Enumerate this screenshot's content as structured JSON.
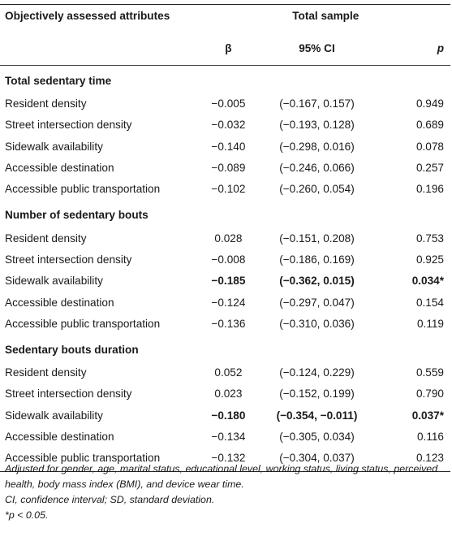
{
  "header": {
    "col1": "Objectively assessed attributes",
    "group": "Total sample",
    "beta": "β",
    "ci": "95% CI",
    "p": "p"
  },
  "sections": [
    {
      "title": "Total sedentary time",
      "rows": [
        {
          "attr": "Resident density",
          "beta": "−0.005",
          "ci": "(−0.167, 0.157)",
          "p": "0.949",
          "bold": false
        },
        {
          "attr": "Street intersection density",
          "beta": "−0.032",
          "ci": "(−0.193, 0.128)",
          "p": "0.689",
          "bold": false
        },
        {
          "attr": "Sidewalk availability",
          "beta": "−0.140",
          "ci": "(−0.298, 0.016)",
          "p": "0.078",
          "bold": false
        },
        {
          "attr": "Accessible destination",
          "beta": "−0.089",
          "ci": "(−0.246, 0.066)",
          "p": "0.257",
          "bold": false
        },
        {
          "attr": "Accessible public transportation",
          "beta": "−0.102",
          "ci": "(−0.260, 0.054)",
          "p": "0.196",
          "bold": false
        }
      ]
    },
    {
      "title": "Number of sedentary bouts",
      "rows": [
        {
          "attr": "Resident density",
          "beta": "0.028",
          "ci": "(−0.151, 0.208)",
          "p": "0.753",
          "bold": false
        },
        {
          "attr": "Street intersection density",
          "beta": "−0.008",
          "ci": "(−0.186, 0.169)",
          "p": "0.925",
          "bold": false
        },
        {
          "attr": "Sidewalk availability",
          "beta": "−0.185",
          "ci": "(−0.362, 0.015)",
          "p": "0.034*",
          "bold": true
        },
        {
          "attr": "Accessible destination",
          "beta": "−0.124",
          "ci": "(−0.297, 0.047)",
          "p": "0.154",
          "bold": false
        },
        {
          "attr": "Accessible public transportation",
          "beta": "−0.136",
          "ci": "(−0.310, 0.036)",
          "p": "0.119",
          "bold": false
        }
      ]
    },
    {
      "title": "Sedentary bouts duration",
      "rows": [
        {
          "attr": "Resident density",
          "beta": "0.052",
          "ci": "(−0.124, 0.229)",
          "p": "0.559",
          "bold": false
        },
        {
          "attr": "Street intersection density",
          "beta": "0.023",
          "ci": "(−0.152, 0.199)",
          "p": "0.790",
          "bold": false
        },
        {
          "attr": "Sidewalk availability",
          "beta": "−0.180",
          "ci": "(−0.354, −0.011)",
          "p": "0.037*",
          "bold": true
        },
        {
          "attr": "Accessible destination",
          "beta": "−0.134",
          "ci": "(−0.305, 0.034)",
          "p": "0.116",
          "bold": false
        },
        {
          "attr": "Accessible public transportation",
          "beta": "−0.132",
          "ci": "(−0.304, 0.037)",
          "p": "0.123",
          "bold": false
        }
      ]
    }
  ],
  "notes": [
    "Adjusted for gender, age, marital status, educational level, working status, living status, perceived health, body mass index (BMI), and device wear time.",
    "CI, confidence interval; SD, standard deviation.",
    "*p < 0.05."
  ]
}
